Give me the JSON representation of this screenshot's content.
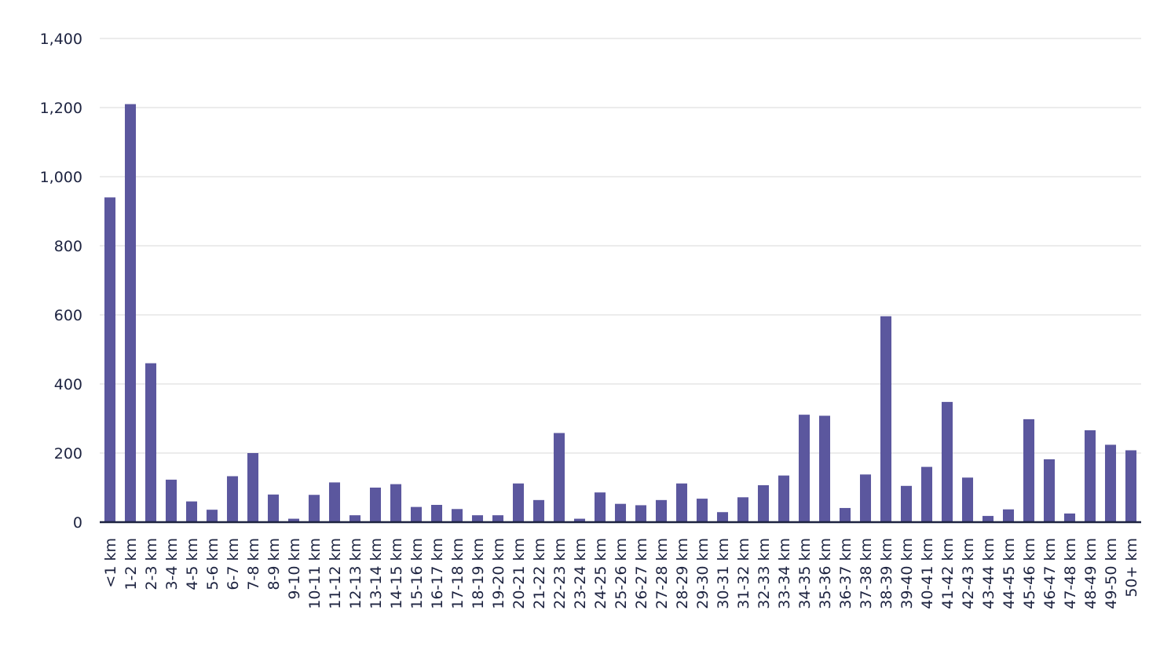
{
  "chart_data": {
    "type": "bar",
    "title": "",
    "xlabel": "",
    "ylabel": "",
    "ylim": [
      0,
      1400
    ],
    "yticks": [
      "0",
      "200",
      "400",
      "600",
      "800",
      "1,000",
      "1,200",
      "1,400"
    ],
    "grid": true,
    "bar_color": "#5b579e",
    "categories": [
      "<1 km",
      "1-2 km",
      "2-3 km",
      "3-4 km",
      "4-5 km",
      "5-6 km",
      "6-7 km",
      "7-8 km",
      "8-9 km",
      "9-10 km",
      "10-11 km",
      "11-12 km",
      "12-13 km",
      "13-14 km",
      "14-15 km",
      "15-16 km",
      "16-17 km",
      "17-18 km",
      "18-19 km",
      "19-20 km",
      "20-21 km",
      "21-22 km",
      "22-23 km",
      "23-24 km",
      "24-25 km",
      "25-26 km",
      "26-27 km",
      "27-28 km",
      "28-29 km",
      "29-30 km",
      "30-31 km",
      "31-32 km",
      "32-33 km",
      "33-34 km",
      "34-35 km",
      "35-36 km",
      "36-37 km",
      "37-38 km",
      "38-39 km",
      "39-40 km",
      "40-41 km",
      "41-42 km",
      "42-43 km",
      "43-44 km",
      "44-45 km",
      "45-46 km",
      "46-47 km",
      "47-48 km",
      "48-49 km",
      "49-50 km",
      "50+ km"
    ],
    "values": [
      940,
      1210,
      460,
      123,
      60,
      36,
      133,
      200,
      80,
      10,
      79,
      115,
      20,
      100,
      110,
      44,
      50,
      38,
      20,
      20,
      112,
      64,
      258,
      10,
      86,
      53,
      49,
      64,
      112,
      68,
      29,
      72,
      107,
      135,
      311,
      308,
      41,
      138,
      596,
      105,
      160,
      348,
      129,
      18,
      37,
      298,
      182,
      25,
      266,
      224,
      208
    ]
  }
}
